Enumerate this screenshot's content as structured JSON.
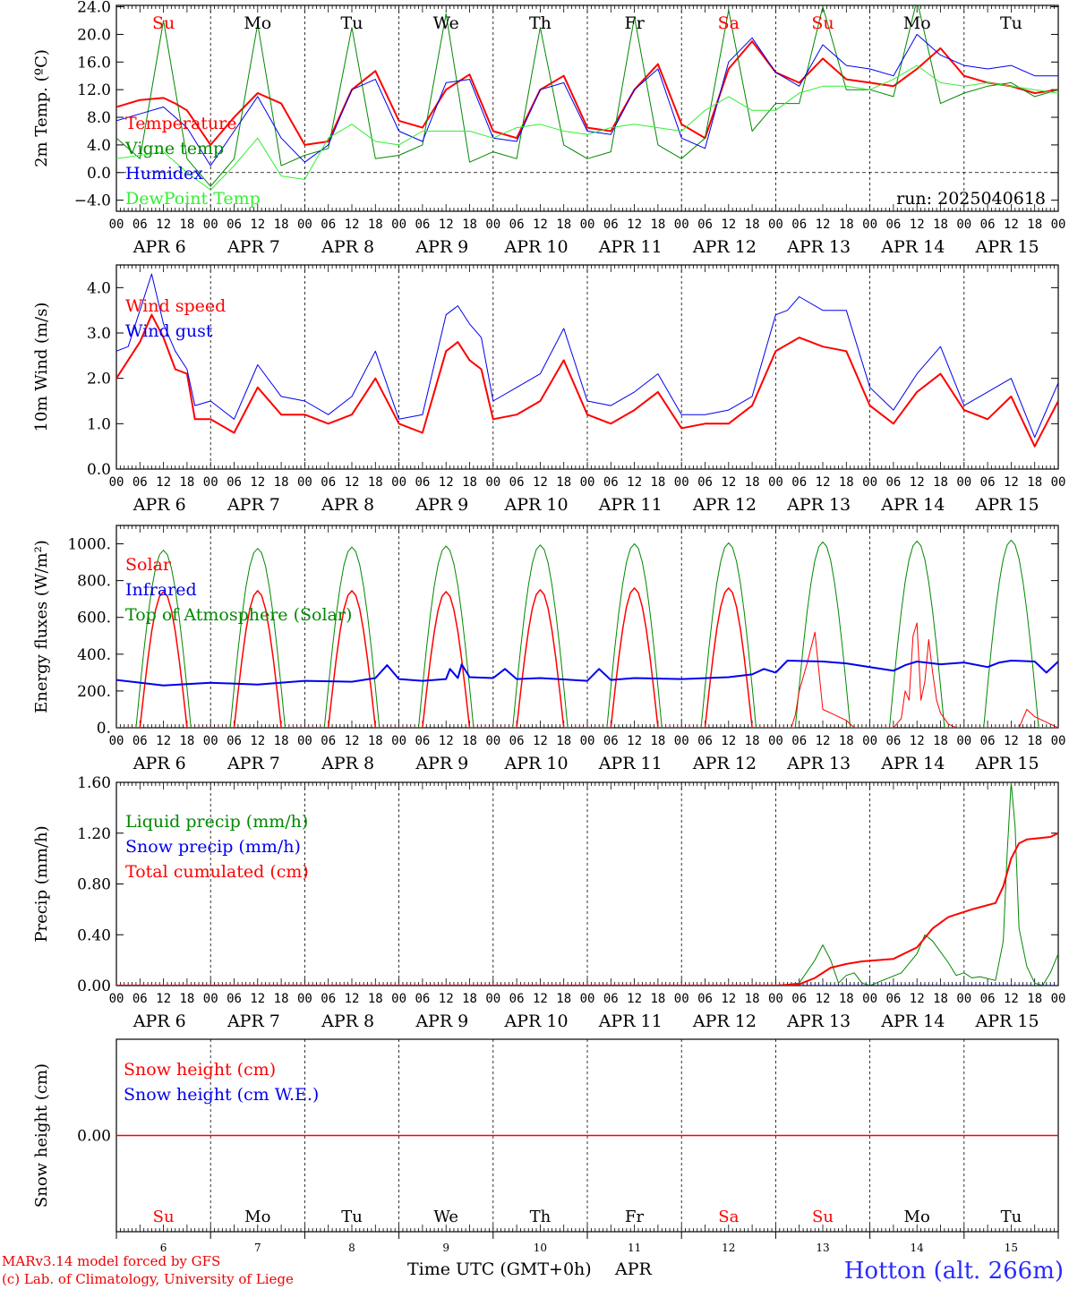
{
  "colors": {
    "red": "#ff0000",
    "green": "#008800",
    "blue": "#0000ee",
    "lightgreen": "#33ee33",
    "axis": "#000000",
    "location": "#2b2bff",
    "credit": "#ee0000"
  },
  "run_label": "run: 2025040618",
  "x_axis": {
    "hour_ticks": [
      "00",
      "06",
      "12",
      "18"
    ],
    "final_tick": "00",
    "dates": [
      "APR  6",
      "APR  7",
      "APR  8",
      "APR  9",
      "APR 10",
      "APR 11",
      "APR 12",
      "APR 13",
      "APR 14",
      "APR 15"
    ],
    "days": [
      {
        "label": "Su",
        "color": "#ff0000"
      },
      {
        "label": "Mo",
        "color": "#000000"
      },
      {
        "label": "Tu",
        "color": "#000000"
      },
      {
        "label": "We",
        "color": "#000000"
      },
      {
        "label": "Th",
        "color": "#000000"
      },
      {
        "label": "Fr",
        "color": "#000000"
      },
      {
        "label": "Sa",
        "color": "#ff0000"
      },
      {
        "label": "Su",
        "color": "#ff0000"
      },
      {
        "label": "Mo",
        "color": "#000000"
      },
      {
        "label": "Tu",
        "color": "#000000"
      }
    ],
    "day_numbers": [
      "6",
      "7",
      "8",
      "9",
      "10",
      "11",
      "12",
      "13",
      "14",
      "15"
    ],
    "title": "Time UTC (GMT+0h)",
    "month": "APR"
  },
  "footer": {
    "credit_line1": "MARv3.14 model forced by GFS",
    "credit_line2": "(c) Lab. of Climatology, University of Liege",
    "location": "Hotton (alt. 266m)"
  },
  "chart_data": [
    {
      "type": "line",
      "ylabel": "2m Temp. (ºC)",
      "ylim": [
        -5.6,
        24.2
      ],
      "yticks": [
        "24.0",
        "20.0",
        "16.0",
        "12.0",
        "8.0",
        "4.0",
        "0.0",
        "−4.0"
      ],
      "ytick_values": [
        24,
        20,
        16,
        12,
        8,
        4,
        0,
        -4
      ],
      "zero_line": true,
      "x_unit": "hours since APR 6 00 UTC",
      "series": [
        {
          "name": "Temperature",
          "color": "#ff0000",
          "width": 2,
          "x": [
            0,
            6,
            12,
            15,
            18,
            24,
            30,
            36,
            42,
            48,
            54,
            60,
            66,
            72,
            78,
            84,
            90,
            96,
            102,
            108,
            114,
            120,
            126,
            132,
            138,
            144,
            150,
            156,
            162,
            168,
            174,
            180,
            186,
            192,
            198,
            204,
            210,
            216,
            222,
            228,
            234,
            240
          ],
          "y": [
            9.5,
            10.5,
            10.8,
            10,
            9,
            4,
            8,
            11.5,
            10,
            4,
            4.5,
            12,
            14.7,
            7.5,
            6.5,
            12,
            14.2,
            6,
            5,
            12,
            14,
            6.5,
            6,
            12,
            15.7,
            7,
            5,
            15,
            19,
            14.5,
            13,
            16.5,
            13.5,
            13,
            12.5,
            15,
            18,
            14,
            13,
            12.5,
            11.5,
            12
          ]
        },
        {
          "name": "Vigne temp",
          "color": "#008800",
          "width": 1,
          "x": [
            0,
            6,
            12,
            18,
            24,
            30,
            36,
            42,
            48,
            54,
            60,
            66,
            72,
            78,
            84,
            90,
            96,
            102,
            108,
            114,
            120,
            126,
            132,
            138,
            144,
            150,
            156,
            162,
            168,
            174,
            180,
            186,
            192,
            198,
            204,
            210,
            216,
            222,
            228,
            234,
            240
          ],
          "y": [
            5,
            2,
            22,
            2,
            -2,
            2,
            21.5,
            1,
            2.5,
            3.5,
            21,
            2,
            2.5,
            4,
            23,
            1.5,
            3,
            2,
            21,
            4,
            2,
            3,
            22.5,
            4,
            2,
            5,
            23.5,
            6,
            10,
            10,
            24,
            12,
            12,
            11,
            25,
            10,
            11.5,
            12.5,
            13,
            11,
            12
          ]
        },
        {
          "name": "Humidex",
          "color": "#0000ee",
          "width": 1,
          "x": [
            0,
            6,
            12,
            18,
            24,
            30,
            36,
            42,
            48,
            54,
            60,
            66,
            72,
            78,
            84,
            90,
            96,
            102,
            108,
            114,
            120,
            126,
            132,
            138,
            144,
            150,
            156,
            162,
            168,
            174,
            180,
            186,
            192,
            198,
            204,
            210,
            216,
            222,
            228,
            234,
            240
          ],
          "y": [
            7.5,
            8.5,
            9.5,
            6.5,
            1,
            6,
            11,
            5,
            1.5,
            4,
            12,
            13.5,
            6,
            4.5,
            13,
            13.5,
            5,
            4.5,
            12,
            13,
            6,
            5.5,
            12,
            15,
            5,
            3.5,
            16,
            19.5,
            14.5,
            12.5,
            18.5,
            15.5,
            15,
            14,
            20,
            17,
            15.5,
            15,
            15.5,
            14,
            14
          ]
        },
        {
          "name": "DewPoint Temp",
          "color": "#33ee33",
          "width": 1,
          "x": [
            0,
            6,
            12,
            18,
            24,
            30,
            36,
            42,
            48,
            54,
            60,
            66,
            72,
            78,
            84,
            90,
            96,
            102,
            108,
            114,
            120,
            126,
            132,
            138,
            144,
            150,
            156,
            162,
            168,
            174,
            180,
            186,
            192,
            198,
            204,
            210,
            216,
            222,
            228,
            234,
            240
          ],
          "y": [
            2,
            2.5,
            3,
            0,
            -2.5,
            1,
            5,
            -0.5,
            -1,
            5,
            7,
            4.5,
            4,
            6,
            6,
            6,
            5,
            6.5,
            7,
            6,
            5.5,
            6.5,
            7,
            6.5,
            6,
            9,
            11,
            9,
            9,
            11.5,
            12.5,
            12.5,
            12,
            13.5,
            15.5,
            13,
            12.5,
            13,
            12.5,
            12,
            11.5
          ]
        }
      ]
    },
    {
      "type": "line",
      "ylabel": "10m Wind (m/s)",
      "ylim": [
        0,
        4.5
      ],
      "yticks": [
        "4.0",
        "3.0",
        "2.0",
        "1.0",
        "0.0"
      ],
      "ytick_values": [
        4,
        3,
        2,
        1,
        0
      ],
      "x_unit": "hours since APR 6 00 UTC",
      "series": [
        {
          "name": "Wind speed",
          "color": "#ff0000",
          "width": 2,
          "x": [
            0,
            6,
            9,
            12,
            15,
            18,
            20,
            24,
            30,
            36,
            42,
            48,
            54,
            60,
            66,
            72,
            78,
            84,
            87,
            90,
            93,
            96,
            102,
            108,
            114,
            120,
            126,
            132,
            138,
            144,
            150,
            156,
            162,
            168,
            174,
            180,
            186,
            192,
            198,
            204,
            210,
            216,
            222,
            228,
            234,
            240
          ],
          "y": [
            2,
            2.8,
            3.4,
            2.9,
            2.2,
            2.1,
            1.1,
            1.1,
            0.8,
            1.8,
            1.2,
            1.2,
            1,
            1.2,
            2,
            1,
            0.8,
            2.6,
            2.8,
            2.4,
            2.2,
            1.1,
            1.2,
            1.5,
            2.4,
            1.2,
            1,
            1.3,
            1.7,
            0.9,
            1,
            1,
            1.4,
            2.6,
            2.9,
            2.7,
            2.6,
            1.4,
            1,
            1.7,
            2.1,
            1.3,
            1.1,
            1.6,
            0.5,
            1.5
          ]
        },
        {
          "name": "Wind gust",
          "color": "#0000ee",
          "width": 1,
          "x": [
            0,
            3,
            6,
            9,
            12,
            15,
            18,
            20,
            24,
            30,
            36,
            42,
            48,
            54,
            60,
            66,
            72,
            78,
            84,
            87,
            90,
            93,
            96,
            102,
            108,
            114,
            120,
            126,
            132,
            138,
            144,
            150,
            156,
            162,
            168,
            171,
            174,
            180,
            186,
            192,
            198,
            204,
            210,
            216,
            222,
            228,
            234,
            240
          ],
          "y": [
            2.6,
            2.7,
            3.5,
            4.3,
            3.2,
            2.6,
            2.2,
            1.4,
            1.5,
            1.1,
            2.3,
            1.6,
            1.5,
            1.2,
            1.6,
            2.6,
            1.1,
            1.2,
            3.4,
            3.6,
            3.2,
            2.9,
            1.5,
            1.8,
            2.1,
            3.1,
            1.5,
            1.4,
            1.7,
            2.1,
            1.2,
            1.2,
            1.3,
            1.6,
            3.4,
            3.5,
            3.8,
            3.5,
            3.5,
            1.8,
            1.3,
            2.1,
            2.7,
            1.4,
            1.7,
            2,
            0.7,
            1.9
          ]
        }
      ]
    },
    {
      "type": "line",
      "ylabel": "Energy fluxes (W/m²)",
      "ylim": [
        0,
        1100
      ],
      "yticks": [
        "1000.",
        "800.",
        "600.",
        "400.",
        "200.",
        "0."
      ],
      "ytick_values": [
        1000,
        800,
        600,
        400,
        200,
        0
      ],
      "x_unit": "hours since APR 6 00 UTC",
      "diurnal": {
        "toa_peaks": [
          965,
          975,
          982,
          988,
          994,
          1000,
          1005,
          1010,
          1015,
          1020
        ],
        "solar_peaks": [
          740,
          745,
          745,
          740,
          750,
          760,
          760,
          null,
          null,
          null
        ],
        "sunrise_hour": 5,
        "sunset_hour": 19
      },
      "series": [
        {
          "name": "Solar",
          "color": "#ff0000",
          "width": 1,
          "x": [
            168,
            170,
            172,
            173,
            174,
            176,
            178,
            180,
            183,
            186,
            188,
            190,
            192,
            194,
            196,
            198,
            200,
            201,
            202,
            203,
            204,
            205,
            206,
            207,
            208,
            209,
            210,
            212,
            214,
            216,
            219,
            221,
            224,
            226,
            228,
            230,
            232,
            234,
            236,
            238,
            240
          ],
          "y": [
            0,
            0,
            0,
            70,
            200,
            350,
            520,
            100,
            70,
            40,
            0,
            0,
            0,
            0,
            0,
            0,
            50,
            200,
            150,
            500,
            570,
            150,
            250,
            480,
            300,
            150,
            80,
            20,
            0,
            0,
            0,
            0,
            0,
            0,
            0,
            0,
            100,
            60,
            40,
            20,
            0
          ]
        },
        {
          "name": "Infrared",
          "color": "#0000ee",
          "width": 2,
          "x": [
            0,
            12,
            24,
            36,
            48,
            60,
            66,
            69,
            72,
            78,
            84,
            85,
            87,
            88,
            90,
            96,
            99,
            102,
            108,
            120,
            123,
            126,
            132,
            144,
            156,
            162,
            165,
            168,
            171,
            180,
            186,
            192,
            198,
            201,
            204,
            210,
            216,
            222,
            225,
            228,
            234,
            237,
            240
          ],
          "y": [
            260,
            230,
            245,
            235,
            255,
            250,
            270,
            340,
            265,
            255,
            265,
            320,
            270,
            345,
            275,
            270,
            320,
            265,
            270,
            255,
            320,
            260,
            270,
            265,
            275,
            290,
            320,
            300,
            365,
            360,
            350,
            330,
            310,
            340,
            360,
            345,
            355,
            330,
            355,
            365,
            360,
            300,
            360
          ]
        },
        {
          "name": "Top of Atmosphere (Solar)",
          "color": "#008800",
          "width": 1,
          "x": [],
          "y": []
        }
      ]
    },
    {
      "type": "line",
      "ylabel": "Precip (mm/h)",
      "ylim": [
        0,
        1.6
      ],
      "yticks": [
        "1.60",
        "1.20",
        "0.80",
        "0.40",
        "0.00"
      ],
      "ytick_values": [
        1.6,
        1.2,
        0.8,
        0.4,
        0
      ],
      "x_unit": "hours since APR 6 00 UTC",
      "series": [
        {
          "name": "Liquid precip (mm/h)",
          "color": "#008800",
          "width": 1,
          "x": [
            0,
            168,
            174,
            178,
            180,
            182,
            184,
            186,
            188,
            190,
            192,
            200,
            204,
            206,
            208,
            212,
            214,
            216,
            218,
            220,
            224,
            226,
            227,
            228,
            229,
            230,
            232,
            234,
            236,
            238,
            240
          ],
          "y": [
            0,
            0,
            0.02,
            0.2,
            0.32,
            0.2,
            0.02,
            0.08,
            0.1,
            0.02,
            0,
            0.1,
            0.25,
            0.4,
            0.35,
            0.18,
            0.08,
            0.1,
            0.06,
            0.07,
            0.04,
            0.35,
            1.05,
            1.6,
            1.25,
            0.45,
            0.15,
            0.02,
            0,
            0.1,
            0.25
          ]
        },
        {
          "name": "Snow precip (mm/h)",
          "color": "#0000ee",
          "width": 1,
          "x": [
            0,
            240
          ],
          "y": [
            0,
            0
          ]
        },
        {
          "name": "Total cumulated (cm)",
          "color": "#ff0000",
          "width": 2,
          "x": [
            0,
            168,
            174,
            178,
            182,
            186,
            190,
            198,
            204,
            208,
            212,
            218,
            224,
            226,
            228,
            230,
            232,
            235,
            238,
            240
          ],
          "y": [
            0,
            0,
            0.01,
            0.06,
            0.14,
            0.17,
            0.19,
            0.21,
            0.3,
            0.45,
            0.54,
            0.6,
            0.65,
            0.78,
            1.0,
            1.12,
            1.15,
            1.16,
            1.17,
            1.2
          ]
        }
      ]
    },
    {
      "type": "line",
      "ylabel": "Snow height (cm)",
      "ylim": [
        -1,
        1
      ],
      "yticks": [
        "0.00"
      ],
      "ytick_values": [
        0
      ],
      "x_unit": "hours since APR 6 00 UTC",
      "series": [
        {
          "name": "Snow height (cm)",
          "color": "#ff0000",
          "width": 1.5,
          "x": [
            0,
            240
          ],
          "y": [
            0,
            0
          ]
        },
        {
          "name": "Snow height (cm W.E.)",
          "color": "#0000ee",
          "width": 1,
          "x": [],
          "y": []
        }
      ]
    }
  ]
}
